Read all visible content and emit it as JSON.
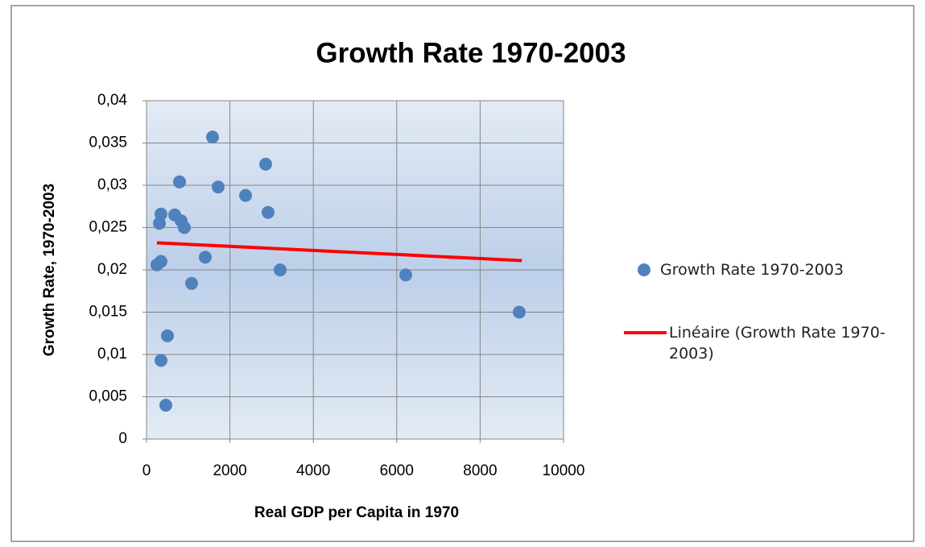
{
  "chart_data": {
    "type": "scatter",
    "title": "Growth Rate 1970-2003",
    "x_label": "Real GDP per Capita in 1970",
    "y_label": "Growth Rate, 1970-2003",
    "xlim": [
      0,
      10000
    ],
    "xticks": [
      0,
      2000,
      4000,
      6000,
      8000,
      10000
    ],
    "ylim": [
      0,
      0.04
    ],
    "yticks": [
      0,
      {
        "value": 0.005,
        "label": "0,005"
      },
      {
        "value": 0.01,
        "label": "0,01"
      },
      {
        "value": 0.015,
        "label": "0,015"
      },
      {
        "value": 0.02,
        "label": "0,02"
      },
      {
        "value": 0.025,
        "label": "0,025"
      },
      {
        "value": 0.03,
        "label": "0,03"
      },
      {
        "value": 0.035,
        "label": "0,035"
      },
      {
        "value": 0.04,
        "label": "0,04"
      }
    ],
    "grid": true,
    "series": [
      {
        "name": "Growth Rate 1970-2003",
        "type": "scatter",
        "color": "#4f81bd",
        "x": [
          1583,
          2857,
          792,
          1718,
          2375,
          2915,
          347,
          676,
          830,
          309,
          907,
          1409,
          347,
          251,
          3205,
          6216,
          1081,
          8938,
          502,
          347,
          463
        ],
        "values": [
          0.0357,
          0.0325,
          0.0304,
          0.0298,
          0.0288,
          0.0268,
          0.0266,
          0.0265,
          0.0258,
          0.0255,
          0.025,
          0.0215,
          0.021,
          0.0206,
          0.02,
          0.0194,
          0.0184,
          0.015,
          0.0122,
          0.0093,
          0.004
        ]
      },
      {
        "name": "Linéaire (Growth Rate 1970-2003)",
        "type": "line",
        "color": "#ff0000",
        "x": [
          250,
          9000
        ],
        "values": [
          0.0232,
          0.0211
        ]
      }
    ]
  }
}
